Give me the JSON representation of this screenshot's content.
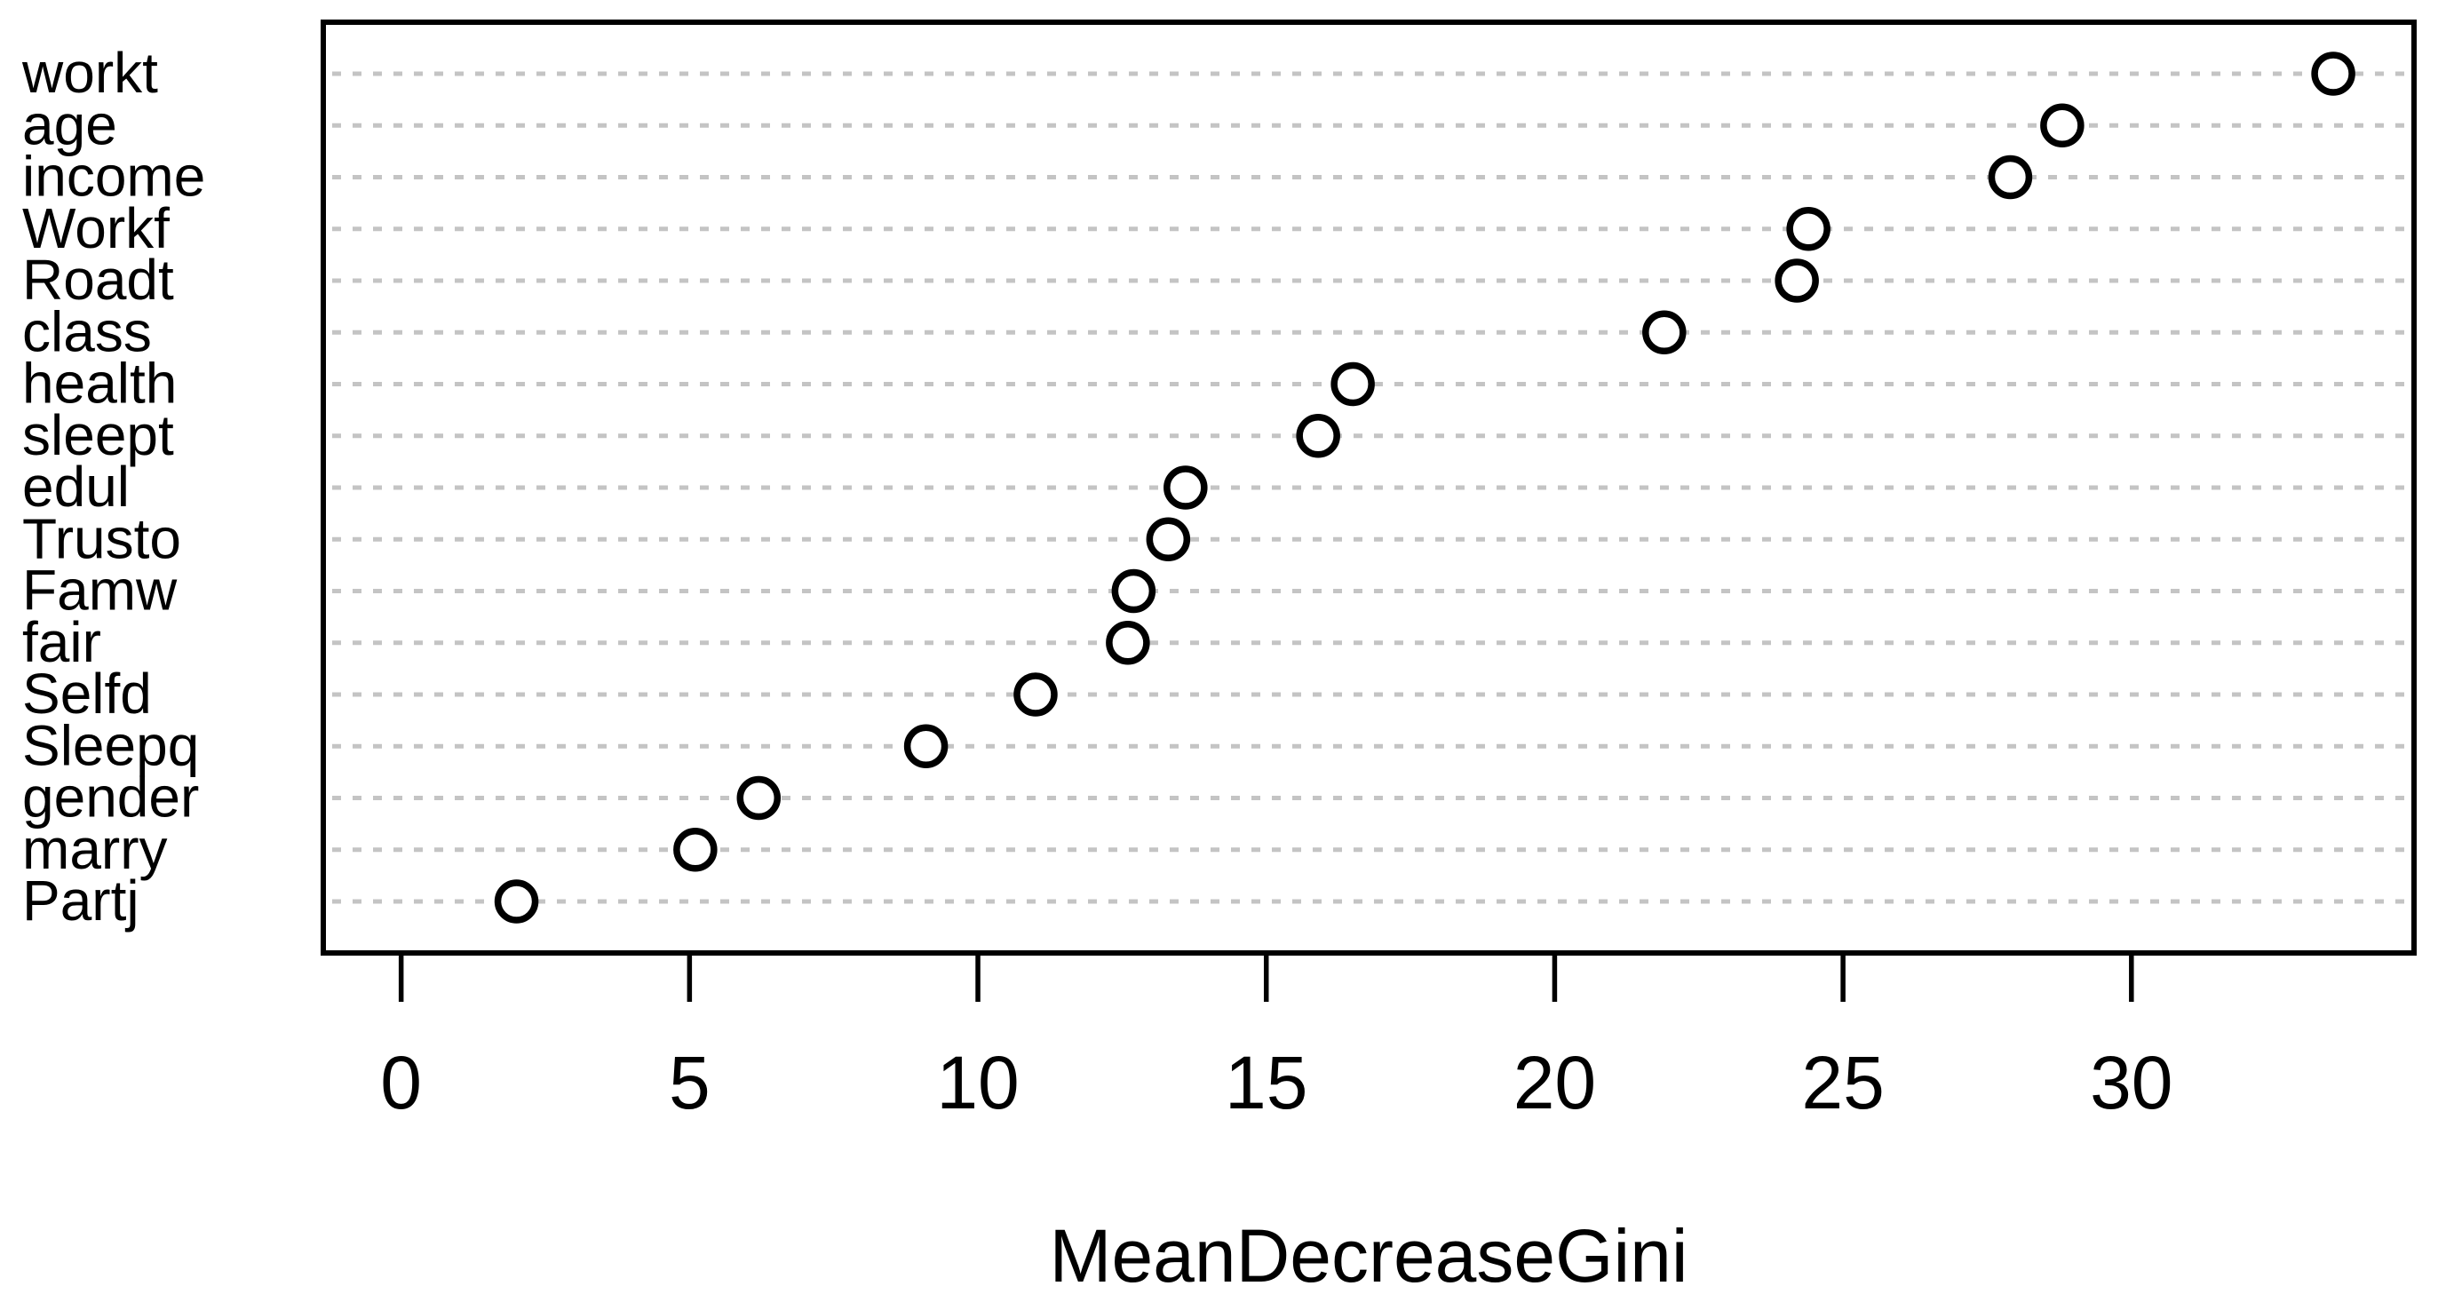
{
  "chart_data": {
    "type": "scatter",
    "chart_style": "dotchart-variable-importance",
    "title": "",
    "xlabel": "MeanDecreaseGini",
    "ylabel": "",
    "categories": [
      "workt",
      "age",
      "income",
      "Workf",
      "Roadt",
      "class",
      "health",
      "sleept",
      "edul",
      "Trusto",
      "Famw",
      "fair",
      "Selfd",
      "Sleepq",
      "gender",
      "marry",
      "Partj"
    ],
    "values": [
      33.5,
      28.8,
      27.9,
      24.4,
      24.2,
      21.9,
      16.5,
      15.9,
      13.6,
      13.3,
      12.7,
      12.6,
      11.0,
      9.1,
      6.2,
      5.1,
      2.0
    ],
    "xlim": [
      -1.35,
      34.9
    ],
    "xticks": [
      0,
      5,
      10,
      15,
      20,
      25,
      30
    ],
    "grid": true,
    "grid_style": "dashed-horizontal",
    "legend": "none",
    "point_marker": "open-circle",
    "colors": {
      "point_stroke": "#000000",
      "point_fill": "#ffffff",
      "grid": "#c4c4c4",
      "box": "#000000",
      "text": "#000000",
      "background": "#ffffff"
    }
  }
}
